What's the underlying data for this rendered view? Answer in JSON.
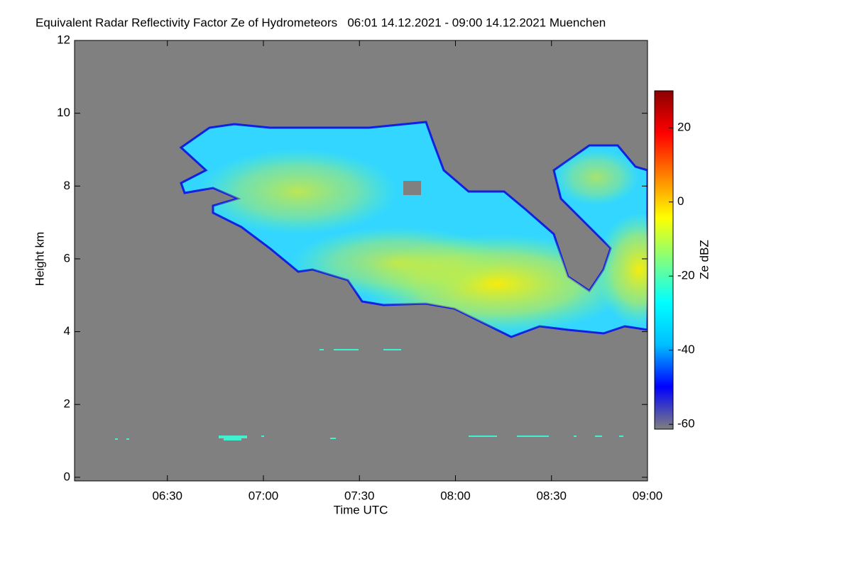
{
  "chart_data": {
    "type": "heatmap",
    "title": "Equivalent Radar Reflectivity Factor Ze of Hydrometeors   06:01 14.12.2021 - 09:00 14.12.2021 Muenchen",
    "x_label": "Time UTC",
    "y_label": "Height km",
    "xlim": [
      361,
      540
    ],
    "xticks": [
      {
        "value": 390,
        "label": "06:30"
      },
      {
        "value": 420,
        "label": "07:00"
      },
      {
        "value": 450,
        "label": "07:30"
      },
      {
        "value": 480,
        "label": "08:00"
      },
      {
        "value": 510,
        "label": "08:30"
      },
      {
        "value": 540,
        "label": "09:00"
      }
    ],
    "ylim": [
      -0.1,
      12
    ],
    "yticks": [
      0,
      2,
      4,
      6,
      8,
      10,
      12
    ],
    "background_color": "#808080",
    "colorbar": {
      "label": "Ze dBZ",
      "lim": [
        -61.3,
        30
      ],
      "ticks": [
        -60,
        -40,
        -20,
        0,
        20
      ],
      "colormap": [
        "#7f7f7f",
        "#0000ff",
        "#00bfff",
        "#00ffff",
        "#80ff80",
        "#ffff00",
        "#ff8000",
        "#ff0000",
        "#8b0000"
      ]
    }
  }
}
